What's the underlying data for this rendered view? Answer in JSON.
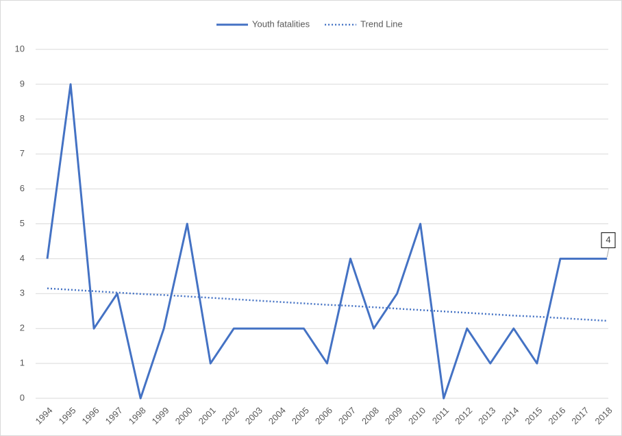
{
  "chart_data": {
    "type": "line",
    "categories": [
      "1994",
      "1995",
      "1996",
      "1997",
      "1998",
      "1999",
      "2000",
      "2001",
      "2002",
      "2003",
      "2004",
      "2005",
      "2006",
      "2007",
      "2008",
      "2009",
      "2010",
      "2011",
      "2012",
      "2013",
      "2014",
      "2015",
      "2016",
      "2017",
      "2018"
    ],
    "series": [
      {
        "name": "Youth fatalities",
        "color": "#4472c4",
        "style": "solid",
        "values": [
          4,
          9,
          2,
          3,
          0,
          2,
          5,
          1,
          2,
          2,
          2,
          2,
          1,
          4,
          2,
          3,
          5,
          0,
          2,
          1,
          2,
          1,
          4,
          4,
          4
        ]
      },
      {
        "name": "Trend Line",
        "color": "#4472c4",
        "style": "dotted",
        "values": [
          3.15,
          3.11,
          3.07,
          3.03,
          2.99,
          2.96,
          2.92,
          2.88,
          2.84,
          2.8,
          2.76,
          2.72,
          2.68,
          2.65,
          2.61,
          2.57,
          2.53,
          2.49,
          2.45,
          2.41,
          2.37,
          2.34,
          2.3,
          2.26,
          2.22
        ]
      }
    ],
    "ylim": [
      0,
      10
    ],
    "yticks": [
      0,
      1,
      2,
      3,
      4,
      5,
      6,
      7,
      8,
      9,
      10
    ],
    "grid": true,
    "legend": "top"
  }
}
